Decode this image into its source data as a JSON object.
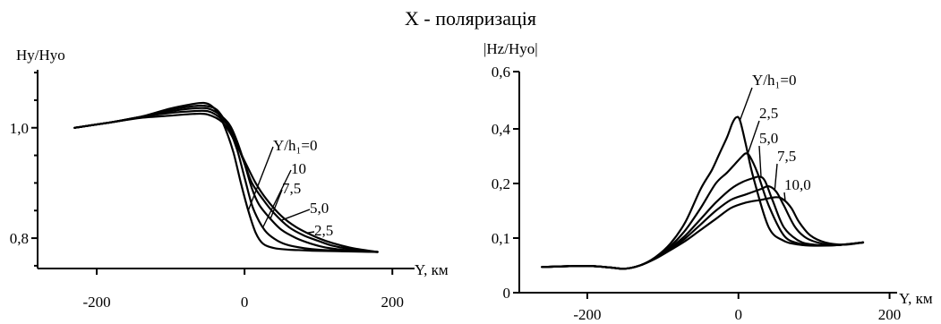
{
  "title": "X - поляризація",
  "chart_data": [
    {
      "type": "line",
      "ylabel": "Hy/Hyo",
      "xlabel": "Y, км",
      "xlim": [
        -280,
        230
      ],
      "ylim": [
        0.745,
        1.105
      ],
      "xticks": [
        -200,
        0,
        200
      ],
      "xtick_labels": [
        "-200",
        "0",
        "200"
      ],
      "yticks": [
        0.8,
        1.0
      ],
      "ytick_labels": [
        "0,8",
        "1,0"
      ],
      "yminor": [
        0.75,
        0.85,
        0.9,
        0.95,
        1.05,
        1.1
      ],
      "series": [
        {
          "name": "Y/h₁=0",
          "x": [
            -230,
            -180,
            -140,
            -100,
            -70,
            -55,
            -45,
            -35,
            -25,
            -15,
            -5,
            5,
            15,
            25,
            40,
            60,
            80,
            100,
            140,
            180
          ],
          "y": [
            1.0,
            1.01,
            1.02,
            1.035,
            1.043,
            1.045,
            1.04,
            1.025,
            0.995,
            0.955,
            0.9,
            0.85,
            0.81,
            0.79,
            0.782,
            0.779,
            0.778,
            0.777,
            0.776,
            0.775
          ]
        },
        {
          "name": "10",
          "x": [
            -230,
            -180,
            -140,
            -100,
            -70,
            -55,
            -40,
            -30,
            -20,
            -10,
            0,
            10,
            20,
            30,
            45,
            60,
            80,
            100,
            140,
            180
          ],
          "y": [
            1.0,
            1.01,
            1.02,
            1.033,
            1.039,
            1.04,
            1.035,
            1.02,
            0.995,
            0.96,
            0.91,
            0.86,
            0.83,
            0.81,
            0.795,
            0.787,
            0.782,
            0.779,
            0.777,
            0.775
          ]
        },
        {
          "name": "7,5",
          "x": [
            -230,
            -180,
            -140,
            -100,
            -70,
            -50,
            -35,
            -20,
            -10,
            0,
            10,
            20,
            35,
            50,
            70,
            90,
            110,
            140,
            180
          ],
          "y": [
            1.0,
            1.01,
            1.02,
            1.03,
            1.035,
            1.035,
            1.025,
            1.005,
            0.975,
            0.935,
            0.89,
            0.86,
            0.835,
            0.815,
            0.8,
            0.79,
            0.783,
            0.778,
            0.775
          ]
        },
        {
          "name": "5,0",
          "x": [
            -230,
            -180,
            -140,
            -100,
            -70,
            -50,
            -35,
            -20,
            -10,
            0,
            10,
            25,
            40,
            60,
            80,
            100,
            120,
            150,
            180
          ],
          "y": [
            1.0,
            1.01,
            1.02,
            1.027,
            1.03,
            1.03,
            1.02,
            1.0,
            0.97,
            0.935,
            0.9,
            0.87,
            0.845,
            0.82,
            0.805,
            0.795,
            0.786,
            0.779,
            0.775
          ]
        },
        {
          "name": "2,5",
          "x": [
            -230,
            -180,
            -140,
            -100,
            -70,
            -50,
            -30,
            -15,
            0,
            15,
            30,
            50,
            70,
            90,
            110,
            130,
            150,
            180
          ],
          "y": [
            1.0,
            1.01,
            1.018,
            1.022,
            1.025,
            1.024,
            1.01,
            0.98,
            0.94,
            0.9,
            0.87,
            0.84,
            0.82,
            0.806,
            0.795,
            0.787,
            0.781,
            0.775
          ]
        }
      ],
      "annotations": [
        "Y/h₁=0",
        "10",
        "7,5",
        "5,0",
        "2,5"
      ]
    },
    {
      "type": "line",
      "ylabel": "|Hz/Hyo|",
      "xlabel": "Y, км",
      "xlim": [
        -290,
        210
      ],
      "ylim": [
        0,
        0.6
      ],
      "xticks": [
        -200,
        0,
        200
      ],
      "xtick_labels": [
        "-200",
        "0",
        "200"
      ],
      "yticks": [
        0,
        0.1,
        0.2,
        0.4,
        0.6
      ],
      "ytick_labels": [
        "0",
        "0,1",
        "0,2",
        "0,4",
        "0,6"
      ],
      "y_scale_note": "non-uniform tick spacing as printed",
      "series": [
        {
          "name": "Y/h₁=0",
          "x": [
            -260,
            -200,
            -170,
            -150,
            -130,
            -110,
            -90,
            -70,
            -50,
            -35,
            -25,
            -15,
            -8,
            -3,
            2,
            10,
            20,
            40,
            60,
            80,
            100,
            130,
            165
          ],
          "y": [
            0.047,
            0.049,
            0.046,
            0.044,
            0.05,
            0.065,
            0.09,
            0.13,
            0.19,
            0.25,
            0.31,
            0.37,
            0.42,
            0.44,
            0.43,
            0.34,
            0.22,
            0.12,
            0.095,
            0.088,
            0.086,
            0.087,
            0.092
          ]
        },
        {
          "name": "2,5",
          "x": [
            -260,
            -200,
            -170,
            -150,
            -130,
            -110,
            -90,
            -70,
            -50,
            -30,
            -15,
            -5,
            5,
            10,
            15,
            25,
            40,
            60,
            80,
            100,
            130,
            165
          ],
          "y": [
            0.047,
            0.049,
            0.046,
            0.044,
            0.05,
            0.064,
            0.085,
            0.115,
            0.155,
            0.2,
            0.24,
            0.27,
            0.3,
            0.31,
            0.3,
            0.24,
            0.16,
            0.105,
            0.09,
            0.087,
            0.087,
            0.092
          ]
        },
        {
          "name": "5,0",
          "x": [
            -260,
            -200,
            -170,
            -150,
            -130,
            -110,
            -90,
            -70,
            -50,
            -30,
            -10,
            5,
            20,
            28,
            35,
            45,
            60,
            80,
            100,
            130,
            165
          ],
          "y": [
            0.047,
            0.049,
            0.046,
            0.044,
            0.05,
            0.063,
            0.082,
            0.105,
            0.135,
            0.165,
            0.19,
            0.205,
            0.22,
            0.225,
            0.21,
            0.17,
            0.12,
            0.095,
            0.088,
            0.087,
            0.092
          ]
        },
        {
          "name": "7,5",
          "x": [
            -260,
            -200,
            -170,
            -150,
            -130,
            -110,
            -90,
            -70,
            -50,
            -30,
            -10,
            10,
            30,
            40,
            50,
            60,
            75,
            90,
            110,
            130,
            165
          ],
          "y": [
            0.047,
            0.049,
            0.046,
            0.044,
            0.05,
            0.063,
            0.08,
            0.1,
            0.125,
            0.15,
            0.17,
            0.18,
            0.19,
            0.195,
            0.185,
            0.16,
            0.12,
            0.1,
            0.09,
            0.087,
            0.092
          ]
        },
        {
          "name": "10,0",
          "x": [
            -260,
            -200,
            -170,
            -150,
            -130,
            -110,
            -90,
            -70,
            -50,
            -30,
            -10,
            10,
            30,
            50,
            60,
            70,
            80,
            95,
            115,
            140,
            165
          ],
          "y": [
            0.047,
            0.049,
            0.046,
            0.044,
            0.05,
            0.062,
            0.078,
            0.095,
            0.115,
            0.135,
            0.155,
            0.165,
            0.17,
            0.175,
            0.17,
            0.155,
            0.13,
            0.105,
            0.092,
            0.088,
            0.092
          ]
        }
      ],
      "annotations": [
        "Y/h₁=0",
        "2,5",
        "5,0",
        "7,5",
        "10,0"
      ]
    }
  ]
}
